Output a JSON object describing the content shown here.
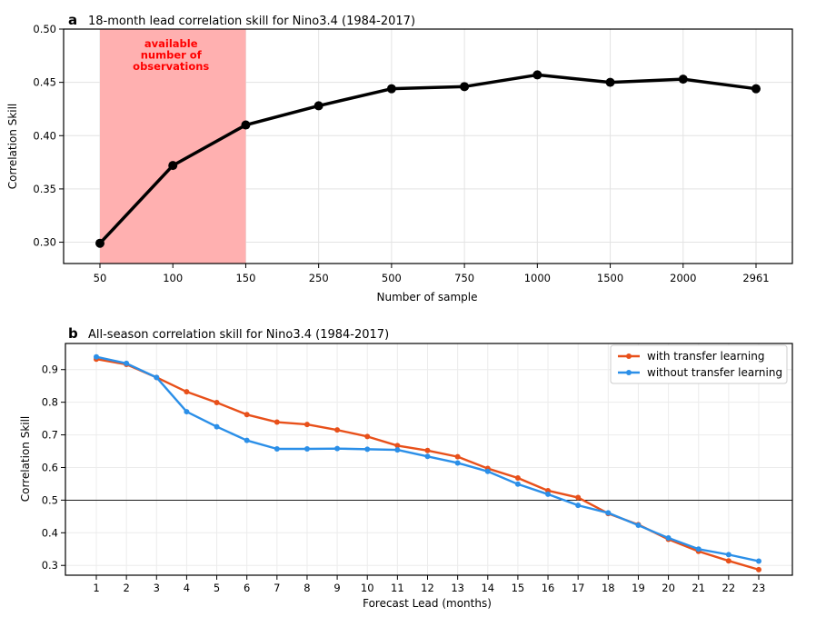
{
  "chart_data": [
    {
      "panel": "a",
      "type": "line",
      "title": "18-month lead correlation skill for Nino3.4 (1984-2017)",
      "xlabel": "Number of sample",
      "ylabel": "Correlation Skill",
      "categories": [
        "50",
        "100",
        "150",
        "250",
        "500",
        "750",
        "1000",
        "1500",
        "2000",
        "2961"
      ],
      "values": [
        0.299,
        0.372,
        0.41,
        0.428,
        0.444,
        0.446,
        0.457,
        0.45,
        0.453,
        0.444
      ],
      "ylim": [
        0.28,
        0.5
      ],
      "yticks": [
        "0.30",
        "0.35",
        "0.40",
        "0.45",
        "0.50"
      ],
      "grid": true,
      "series_color": "#000000",
      "shaded_region": {
        "from": "50",
        "to": "150",
        "color": "#ffb0b0",
        "label_lines": [
          "available",
          "number of",
          "observations"
        ],
        "label_color": "#ff0000"
      }
    },
    {
      "panel": "b",
      "type": "line",
      "title": "All-season correlation skill for Nino3.4 (1984-2017)",
      "xlabel": "Forecast Lead (months)",
      "ylabel": "Correlation Skill",
      "x": [
        "1",
        "2",
        "3",
        "4",
        "5",
        "6",
        "7",
        "8",
        "9",
        "10",
        "11",
        "12",
        "13",
        "14",
        "15",
        "16",
        "17",
        "18",
        "19",
        "20",
        "21",
        "22",
        "23"
      ],
      "series": [
        {
          "name": "with transfer learning",
          "color": "#e8501a",
          "values": [
            0.932,
            0.916,
            0.876,
            0.832,
            0.799,
            0.762,
            0.739,
            0.732,
            0.715,
            0.695,
            0.667,
            0.652,
            0.633,
            0.597,
            0.568,
            0.529,
            0.508,
            0.459,
            0.425,
            0.38,
            0.343,
            0.314,
            0.287
          ]
        },
        {
          "name": "without transfer learning",
          "color": "#2b8fe8",
          "values": [
            0.939,
            0.919,
            0.876,
            0.771,
            0.725,
            0.683,
            0.657,
            0.657,
            0.658,
            0.656,
            0.654,
            0.634,
            0.614,
            0.588,
            0.549,
            0.518,
            0.484,
            0.461,
            0.423,
            0.384,
            0.35,
            0.333,
            0.313
          ]
        }
      ],
      "ylim": [
        0.27,
        0.98
      ],
      "yticks": [
        "0.3",
        "0.4",
        "0.5",
        "0.6",
        "0.7",
        "0.8",
        "0.9"
      ],
      "reference_line": 0.5,
      "grid": true,
      "legend": "top-right"
    }
  ]
}
